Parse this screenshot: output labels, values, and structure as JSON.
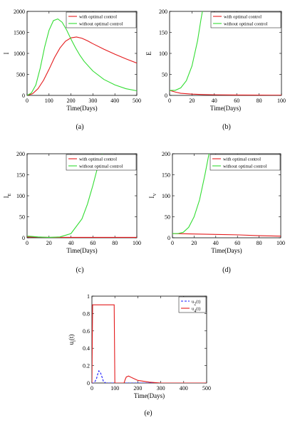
{
  "colors": {
    "optimal": "#e41a1c",
    "no_optimal": "#33dd33",
    "u2": "#1a1aff",
    "u4": "#e41a1c"
  },
  "chart_data": [
    {
      "type": "line",
      "panel_label": "(a)",
      "xlabel": "Time(Days)",
      "ylabel": "I",
      "xlim": [
        0,
        500
      ],
      "ylim": [
        0,
        2000
      ],
      "xticks": [
        0,
        100,
        200,
        300,
        400,
        500
      ],
      "yticks": [
        0,
        500,
        1000,
        1500,
        2000
      ],
      "legend_position": "top-right",
      "series": [
        {
          "name": "with optimal control",
          "color_key": "optimal",
          "style": "solid",
          "x": [
            0,
            25,
            50,
            75,
            100,
            125,
            150,
            175,
            200,
            225,
            250,
            275,
            300,
            350,
            400,
            450,
            500
          ],
          "y": [
            0,
            40,
            160,
            360,
            620,
            900,
            1130,
            1290,
            1370,
            1390,
            1360,
            1300,
            1230,
            1100,
            980,
            870,
            770
          ]
        },
        {
          "name": "without optimal control",
          "color_key": "no_optimal",
          "style": "solid",
          "x": [
            0,
            20,
            40,
            60,
            80,
            100,
            120,
            140,
            160,
            180,
            200,
            220,
            240,
            260,
            300,
            350,
            400,
            450,
            500
          ],
          "y": [
            0,
            60,
            250,
            650,
            1150,
            1550,
            1780,
            1820,
            1740,
            1560,
            1340,
            1140,
            960,
            810,
            580,
            380,
            250,
            160,
            110
          ]
        }
      ]
    },
    {
      "type": "line",
      "panel_label": "(b)",
      "xlabel": "Time(Days)",
      "ylabel": "E",
      "xlim": [
        0,
        100
      ],
      "ylim": [
        0,
        200
      ],
      "xticks": [
        0,
        20,
        40,
        60,
        80,
        100
      ],
      "yticks": [
        0,
        50,
        100,
        150,
        200
      ],
      "legend_position": "top-right",
      "series": [
        {
          "name": "with optimal control",
          "color_key": "optimal",
          "style": "solid",
          "x": [
            0,
            5,
            10,
            20,
            30,
            40,
            60,
            80,
            100
          ],
          "y": [
            12,
            8,
            5,
            3,
            2,
            1.5,
            1,
            0.8,
            0.5
          ]
        },
        {
          "name": "without optimal control",
          "color_key": "no_optimal",
          "style": "solid",
          "x": [
            0,
            5,
            10,
            15,
            20,
            25,
            28,
            30
          ],
          "y": [
            12,
            12,
            18,
            35,
            70,
            130,
            180,
            210
          ]
        }
      ]
    },
    {
      "type": "line",
      "panel_label": "(c)",
      "xlabel": "Time(Days)",
      "ylabel": "I_E",
      "xlim": [
        0,
        100
      ],
      "ylim": [
        0,
        200
      ],
      "xticks": [
        0,
        20,
        40,
        60,
        80,
        100
      ],
      "yticks": [
        0,
        50,
        100,
        150,
        200
      ],
      "legend_position": "top-right",
      "series": [
        {
          "name": "with optimal control",
          "color_key": "optimal",
          "style": "solid",
          "x": [
            0,
            10,
            20,
            40,
            60,
            80,
            100
          ],
          "y": [
            2,
            1.5,
            1,
            1,
            1,
            1,
            1
          ]
        },
        {
          "name": "without optimal control",
          "color_key": "no_optimal",
          "style": "solid",
          "x": [
            0,
            5,
            10,
            20,
            30,
            40,
            50,
            55,
            60,
            65,
            70
          ],
          "y": [
            4,
            3,
            2,
            1,
            2,
            10,
            45,
            80,
            125,
            175,
            210
          ]
        }
      ]
    },
    {
      "type": "line",
      "panel_label": "(d)",
      "xlabel": "Time(Days)",
      "ylabel": "I_V",
      "xlim": [
        0,
        100
      ],
      "ylim": [
        0,
        200
      ],
      "xticks": [
        0,
        20,
        40,
        60,
        80,
        100
      ],
      "yticks": [
        0,
        50,
        100,
        150,
        200
      ],
      "legend_position": "top-right",
      "series": [
        {
          "name": "with optimal control",
          "color_key": "optimal",
          "style": "solid",
          "x": [
            0,
            20,
            40,
            60,
            80,
            100
          ],
          "y": [
            10,
            9,
            8,
            7,
            5,
            4
          ]
        },
        {
          "name": "without optimal control",
          "color_key": "no_optimal",
          "style": "solid",
          "x": [
            0,
            5,
            10,
            15,
            20,
            25,
            30,
            33,
            36
          ],
          "y": [
            10,
            10,
            13,
            25,
            50,
            90,
            150,
            190,
            230
          ]
        }
      ]
    },
    {
      "type": "line",
      "panel_label": "(e)",
      "xlabel": "Time(Days)",
      "ylabel": "u_i(t)",
      "xlim": [
        0,
        500
      ],
      "ylim": [
        0,
        1
      ],
      "xticks": [
        0,
        100,
        200,
        300,
        400,
        500
      ],
      "yticks": [
        0,
        0.2,
        0.4,
        0.6,
        0.8,
        1
      ],
      "ytick_labels": [
        "0",
        "0.2",
        "0.4",
        "0.6",
        "0.8",
        "1"
      ],
      "legend_position": "top-right",
      "series": [
        {
          "name": "u_2(t)",
          "color_key": "u2",
          "style": "dashed",
          "x": [
            0,
            10,
            20,
            25,
            30,
            35,
            40,
            45,
            50,
            60,
            80,
            500
          ],
          "y": [
            0,
            0,
            0.05,
            0.1,
            0.14,
            0.13,
            0.1,
            0.06,
            0.02,
            0,
            0,
            0
          ]
        },
        {
          "name": "u_4(t)",
          "color_key": "u4",
          "style": "solid",
          "x": [
            0,
            3,
            10,
            90,
            97,
            100,
            140,
            145,
            150,
            160,
            175,
            200,
            250,
            300,
            500
          ],
          "y": [
            0,
            0.9,
            0.9,
            0.9,
            0.9,
            0,
            0,
            0.04,
            0.07,
            0.08,
            0.06,
            0.03,
            0.01,
            0,
            0
          ]
        }
      ]
    }
  ]
}
